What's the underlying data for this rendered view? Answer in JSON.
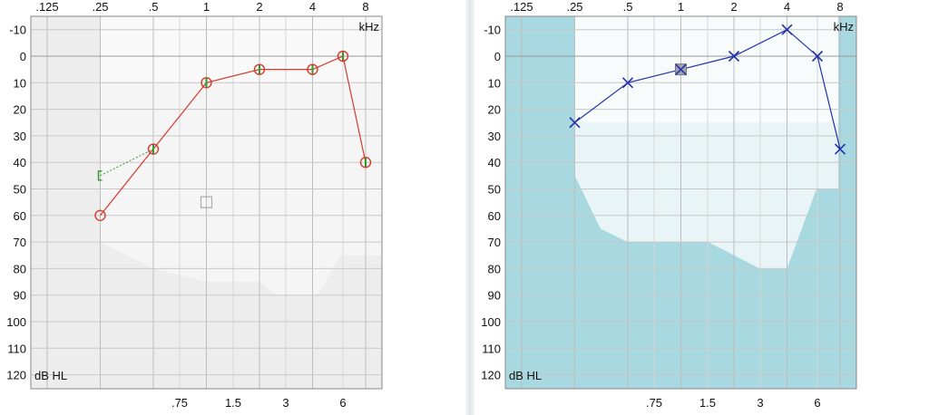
{
  "chart_data": [
    {
      "type": "scatter",
      "ear": "right",
      "top_freq_labels": [
        ".125",
        ".25",
        ".5",
        "1",
        "2",
        "4",
        "8"
      ],
      "bottom_freq_labels": [
        ".75",
        "1.5",
        "3",
        "6"
      ],
      "freq_unit_label": "kHz",
      "y_unit_label": "dB HL",
      "y_tick_labels": [
        "-10",
        "0",
        "10",
        "20",
        "30",
        "40",
        "50",
        "60",
        "70",
        "80",
        "90",
        "100",
        "110",
        "120"
      ],
      "ylim": [
        -15,
        125
      ],
      "y_inverted": true,
      "colors": {
        "air": "#d23b2b",
        "bone": "#2c9a2c",
        "masking": "#aaaaaa",
        "background": "#ebebeb"
      },
      "air_conduction": [
        {
          "x": ".25",
          "y": 60
        },
        {
          "x": ".5",
          "y": 35
        },
        {
          "x": "1",
          "y": 10
        },
        {
          "x": "2",
          "y": 5
        },
        {
          "x": "4",
          "y": 5
        },
        {
          "x": "6",
          "y": 0
        },
        {
          "x": "8",
          "y": 40
        }
      ],
      "bone_conduction": [
        {
          "x": ".25",
          "y": 45
        },
        {
          "x": ".5",
          "y": 35
        },
        {
          "x": "1",
          "y": 10
        },
        {
          "x": "2",
          "y": 5
        },
        {
          "x": "4",
          "y": 5
        },
        {
          "x": "6",
          "y": 0
        },
        {
          "x": "8",
          "y": 40
        }
      ],
      "extra_marker": {
        "x": "1",
        "y": 55
      }
    },
    {
      "type": "scatter",
      "ear": "left",
      "top_freq_labels": [
        ".125",
        ".25",
        ".5",
        "1",
        "2",
        "4",
        "8"
      ],
      "bottom_freq_labels": [
        ".75",
        "1.5",
        "3",
        "6"
      ],
      "freq_unit_label": "kHz",
      "y_unit_label": "dB HL",
      "y_tick_labels": [
        "-10",
        "0",
        "10",
        "20",
        "30",
        "40",
        "50",
        "60",
        "70",
        "80",
        "90",
        "100",
        "110",
        "120"
      ],
      "ylim": [
        -15,
        125
      ],
      "y_inverted": true,
      "colors": {
        "air": "#2233aa",
        "background": "#a8d8e0"
      },
      "air_conduction": [
        {
          "x": ".25",
          "y": 25
        },
        {
          "x": ".5",
          "y": 10
        },
        {
          "x": "1",
          "y": 5,
          "masked": true
        },
        {
          "x": "2",
          "y": 0
        },
        {
          "x": "4",
          "y": -10
        },
        {
          "x": "6",
          "y": 0
        },
        {
          "x": "8",
          "y": 35
        }
      ]
    }
  ]
}
